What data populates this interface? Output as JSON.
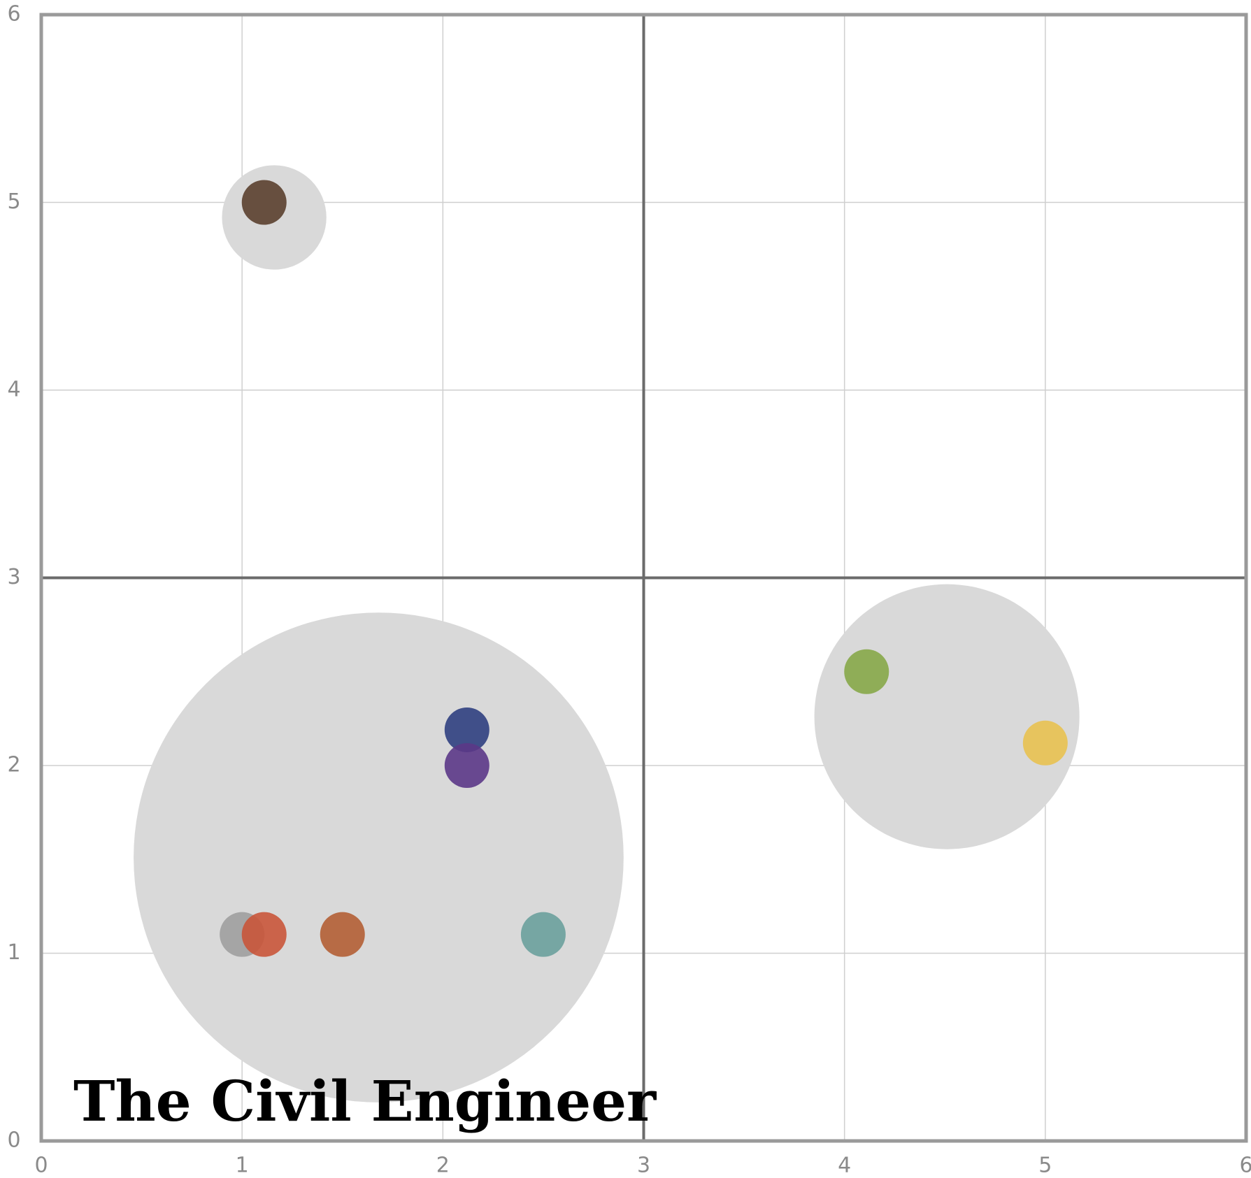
{
  "chart_data": {
    "type": "scatter",
    "title": "The Civil Engineer",
    "xlim": [
      0,
      6
    ],
    "ylim": [
      0,
      6
    ],
    "xticks": [
      0,
      1,
      2,
      3,
      4,
      5,
      6
    ],
    "yticks": [
      0,
      1,
      2,
      3,
      4,
      5,
      6
    ],
    "grid": true,
    "quadrant_lines": {
      "x": 3,
      "y": 3
    },
    "clusters": {
      "color": "#d9d9d9",
      "x": [
        1.16,
        4.51,
        1.68
      ],
      "y": [
        4.92,
        2.26,
        1.51
      ],
      "sizes": [
        0.26,
        0.66,
        1.22
      ]
    },
    "points": {
      "x": [
        1.0,
        1.11,
        1.5,
        2.5,
        2.12,
        2.12,
        1.11,
        4.11,
        5.0
      ],
      "y": [
        1.1,
        1.1,
        1.1,
        1.1,
        2.19,
        2.0,
        5.0,
        2.5,
        2.12
      ],
      "colors": [
        "#9e9e9e",
        "#c9553a",
        "#b35e34",
        "#6aa09c",
        "#2f3f7f",
        "#5b3787",
        "#5a3f2d",
        "#86a748",
        "#e8c150"
      ]
    }
  }
}
